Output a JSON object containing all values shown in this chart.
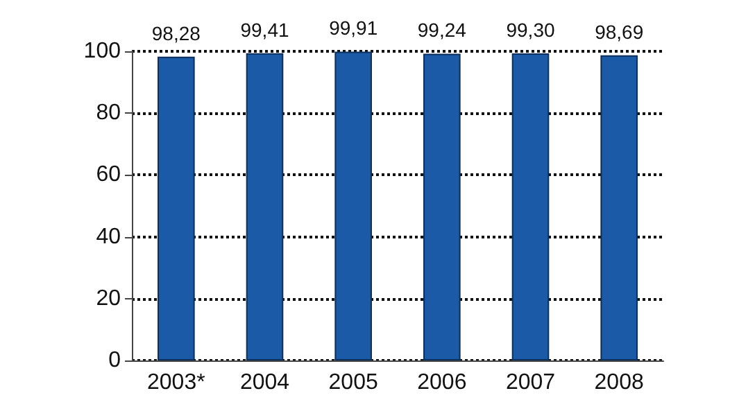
{
  "chart_data": {
    "type": "bar",
    "categories": [
      "2003*",
      "2004",
      "2005",
      "2006",
      "2007",
      "2008"
    ],
    "values": [
      98.28,
      99.41,
      99.91,
      99.24,
      99.3,
      98.69
    ],
    "value_labels": [
      "98,28",
      "99,41",
      "99,91",
      "99,24",
      "99,30",
      "98,69"
    ],
    "color": "#1a5aa6",
    "ylim": [
      0,
      100
    ],
    "yticks": [
      0,
      20,
      40,
      60,
      80,
      100
    ],
    "grid": "y"
  }
}
